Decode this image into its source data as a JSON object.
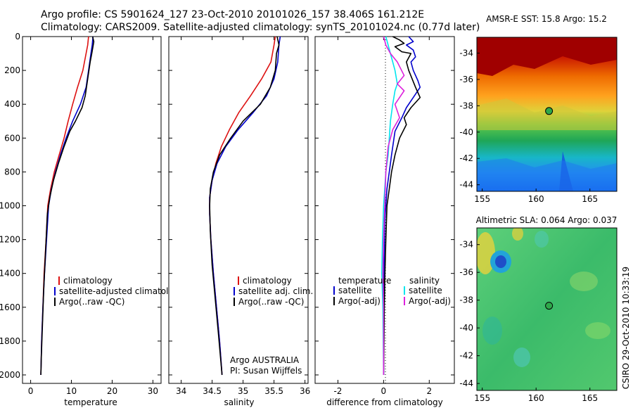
{
  "header": {
    "line1": "Argo profile: CS 5901624_127 23-Oct-2010 20101026_157 38.406S 161.212E",
    "line2": "Climatology: CARS2009. Satellite-adjusted climatology: synTS_20101024.nc (0.77d later)"
  },
  "colors": {
    "climatology": "#dd1111",
    "satellite": "#0000cc",
    "argo": "#000000",
    "adj_salinity": "#00e5ee",
    "argo_salinity": "#dd22dd"
  },
  "chart_data": [
    {
      "type": "line",
      "panel": "temperature",
      "xlabel": "temperature",
      "ylabel": "",
      "xlim": [
        -2,
        32
      ],
      "ylim": [
        2050,
        0
      ],
      "y_reversed": true,
      "xticks": [
        "0",
        "10",
        "20",
        "30"
      ],
      "yticks": [
        "0",
        "200",
        "400",
        "600",
        "800",
        "1000",
        "1200",
        "1400",
        "1600",
        "1800",
        "2000"
      ],
      "legend": [
        "climatology",
        "satellite-adjusted climatolog",
        "Argo(..raw -QC)"
      ],
      "series": [
        {
          "name": "climatology",
          "color": "#dd1111",
          "points": [
            [
              14.2,
              0
            ],
            [
              14.0,
              50
            ],
            [
              13.6,
              100
            ],
            [
              12.8,
              200
            ],
            [
              11.5,
              300
            ],
            [
              10.3,
              400
            ],
            [
              9.2,
              500
            ],
            [
              8.2,
              600
            ],
            [
              7.0,
              700
            ],
            [
              5.8,
              800
            ],
            [
              4.9,
              900
            ],
            [
              4.2,
              1000
            ],
            [
              3.8,
              1200
            ],
            [
              3.3,
              1400
            ],
            [
              3.0,
              1600
            ],
            [
              2.7,
              1800
            ],
            [
              2.5,
              2000
            ]
          ]
        },
        {
          "name": "satellite-adjusted climatolog",
          "color": "#0000cc",
          "points": [
            [
              15.3,
              0
            ],
            [
              15.1,
              50
            ],
            [
              14.8,
              100
            ],
            [
              14.2,
              200
            ],
            [
              13.6,
              300
            ],
            [
              12.2,
              400
            ],
            [
              10.3,
              500
            ],
            [
              8.7,
              600
            ],
            [
              7.3,
              700
            ],
            [
              6.1,
              800
            ],
            [
              5.1,
              900
            ],
            [
              4.4,
              1000
            ],
            [
              3.9,
              1200
            ],
            [
              3.4,
              1400
            ],
            [
              3.0,
              1600
            ],
            [
              2.7,
              1800
            ],
            [
              2.5,
              2000
            ]
          ]
        },
        {
          "name": "Argo(..raw -QC)",
          "color": "#000000",
          "points": [
            [
              15.2,
              0
            ],
            [
              15.5,
              30
            ],
            [
              15.0,
              100
            ],
            [
              14.6,
              150
            ],
            [
              14.0,
              250
            ],
            [
              13.4,
              350
            ],
            [
              12.6,
              420
            ],
            [
              11.0,
              500
            ],
            [
              9.6,
              560
            ],
            [
              8.2,
              650
            ],
            [
              6.8,
              750
            ],
            [
              5.6,
              850
            ],
            [
              4.7,
              950
            ],
            [
              4.1,
              1050
            ],
            [
              3.6,
              1300
            ],
            [
              3.2,
              1500
            ],
            [
              2.9,
              1700
            ],
            [
              2.6,
              1900
            ],
            [
              2.5,
              2000
            ]
          ]
        }
      ]
    },
    {
      "type": "line",
      "panel": "salinity",
      "xlabel": "salinity",
      "ylabel": "",
      "xlim": [
        33.8,
        36.05
      ],
      "ylim": [
        2050,
        0
      ],
      "y_reversed": true,
      "xticks": [
        "34",
        "34.5",
        "35",
        "35.5",
        "36"
      ],
      "legend": [
        "climatology",
        "satellite adj. clim.",
        "Argo(..raw -QC)"
      ],
      "annotation": [
        "Argo AUSTRALIA",
        "PI: Susan Wijffels"
      ],
      "series": [
        {
          "name": "climatology",
          "color": "#dd1111",
          "points": [
            [
              35.52,
              0
            ],
            [
              35.5,
              50
            ],
            [
              35.45,
              150
            ],
            [
              35.3,
              250
            ],
            [
              35.12,
              350
            ],
            [
              34.93,
              450
            ],
            [
              34.78,
              550
            ],
            [
              34.65,
              650
            ],
            [
              34.56,
              750
            ],
            [
              34.5,
              850
            ],
            [
              34.46,
              950
            ],
            [
              34.46,
              1050
            ],
            [
              34.48,
              1200
            ],
            [
              34.52,
              1400
            ],
            [
              34.57,
              1600
            ],
            [
              34.62,
              1800
            ],
            [
              34.66,
              2000
            ]
          ]
        },
        {
          "name": "satellite adj. clim.",
          "color": "#0000cc",
          "points": [
            [
              35.6,
              0
            ],
            [
              35.58,
              50
            ],
            [
              35.56,
              150
            ],
            [
              35.5,
              250
            ],
            [
              35.38,
              350
            ],
            [
              35.16,
              450
            ],
            [
              34.92,
              550
            ],
            [
              34.72,
              650
            ],
            [
              34.58,
              750
            ],
            [
              34.5,
              850
            ],
            [
              34.46,
              950
            ],
            [
              34.46,
              1050
            ],
            [
              34.48,
              1200
            ],
            [
              34.52,
              1400
            ],
            [
              34.57,
              1600
            ],
            [
              34.62,
              1800
            ],
            [
              34.66,
              2000
            ]
          ]
        },
        {
          "name": "Argo(..raw -QC)",
          "color": "#000000",
          "points": [
            [
              35.55,
              0
            ],
            [
              35.58,
              50
            ],
            [
              35.54,
              100
            ],
            [
              35.52,
              200
            ],
            [
              35.44,
              300
            ],
            [
              35.28,
              400
            ],
            [
              35.0,
              500
            ],
            [
              34.8,
              600
            ],
            [
              34.62,
              700
            ],
            [
              34.52,
              800
            ],
            [
              34.47,
              900
            ],
            [
              34.46,
              1000
            ],
            [
              34.47,
              1150
            ],
            [
              34.5,
              1350
            ],
            [
              34.55,
              1550
            ],
            [
              34.6,
              1750
            ],
            [
              34.66,
              2000
            ]
          ]
        }
      ]
    },
    {
      "type": "line",
      "panel": "difference",
      "xlabel": "difference from climatology",
      "ylabel": "",
      "xlim": [
        -3,
        3.1
      ],
      "ylim": [
        2050,
        0
      ],
      "y_reversed": true,
      "xticks": [
        "-2",
        "0",
        "2"
      ],
      "legend_left_header": "temperature",
      "legend_right_header": "salinity",
      "legend": [
        "satellite",
        "Argo(-adj)",
        "satellite",
        "Argo(-adj)"
      ],
      "series": [
        {
          "name": "temperature satellite",
          "color": "#0000cc",
          "points": [
            [
              1.1,
              0
            ],
            [
              1.3,
              30
            ],
            [
              1.0,
              50
            ],
            [
              1.3,
              80
            ],
            [
              1.4,
              120
            ],
            [
              1.2,
              150
            ],
            [
              1.3,
              200
            ],
            [
              1.5,
              260
            ],
            [
              1.6,
              300
            ],
            [
              1.3,
              360
            ],
            [
              1.0,
              420
            ],
            [
              0.8,
              480
            ],
            [
              0.5,
              560
            ],
            [
              0.35,
              700
            ],
            [
              0.25,
              800
            ],
            [
              0.15,
              900
            ],
            [
              0.05,
              1100
            ],
            [
              0.02,
              1400
            ],
            [
              0.0,
              1800
            ],
            [
              0.0,
              2000
            ]
          ]
        },
        {
          "name": "temperature Argo(-adj)",
          "color": "#000000",
          "points": [
            [
              0.4,
              0
            ],
            [
              0.7,
              20
            ],
            [
              0.9,
              40
            ],
            [
              0.5,
              60
            ],
            [
              0.8,
              90
            ],
            [
              1.2,
              100
            ],
            [
              1.0,
              150
            ],
            [
              1.1,
              200
            ],
            [
              1.4,
              300
            ],
            [
              1.6,
              360
            ],
            [
              1.2,
              420
            ],
            [
              0.9,
              480
            ],
            [
              1.0,
              520
            ],
            [
              0.7,
              600
            ],
            [
              0.5,
              700
            ],
            [
              0.35,
              800
            ],
            [
              0.25,
              900
            ],
            [
              0.15,
              1000
            ],
            [
              0.1,
              1200
            ],
            [
              0.06,
              1400
            ],
            [
              0.03,
              1600
            ],
            [
              0.0,
              2000
            ]
          ]
        },
        {
          "name": "salinity satellite",
          "color": "#00e5ee",
          "points": [
            [
              0.1,
              0
            ],
            [
              0.3,
              100
            ],
            [
              0.5,
              200
            ],
            [
              0.6,
              280
            ],
            [
              0.5,
              320
            ],
            [
              0.4,
              400
            ],
            [
              0.3,
              500
            ],
            [
              0.25,
              600
            ],
            [
              0.2,
              700
            ],
            [
              0.1,
              800
            ],
            [
              0.05,
              900
            ],
            [
              0.0,
              1000
            ],
            [
              -0.05,
              1200
            ],
            [
              -0.08,
              1400
            ],
            [
              -0.03,
              1600
            ],
            [
              0.0,
              2000
            ]
          ]
        },
        {
          "name": "salinity Argo(-adj)",
          "color": "#dd22dd",
          "points": [
            [
              0.0,
              0
            ],
            [
              0.1,
              50
            ],
            [
              0.3,
              100
            ],
            [
              0.6,
              150
            ],
            [
              0.9,
              230
            ],
            [
              0.6,
              280
            ],
            [
              0.9,
              320
            ],
            [
              0.5,
              400
            ],
            [
              0.7,
              480
            ],
            [
              0.4,
              550
            ],
            [
              0.2,
              650
            ],
            [
              0.1,
              800
            ],
            [
              0.05,
              1000
            ],
            [
              0.0,
              1200
            ],
            [
              -0.03,
              1400
            ],
            [
              0.0,
              1600
            ],
            [
              0.0,
              2000
            ]
          ]
        }
      ]
    },
    {
      "type": "heatmap",
      "panel": "sst_map",
      "title": "AMSR-E SST: 15.8 Argo: 15.2",
      "xlim": [
        154.5,
        167.5
      ],
      "ylim": [
        -44.5,
        -32.8
      ],
      "xticks": [
        "155",
        "160",
        "165"
      ],
      "yticks": [
        "-34",
        "-36",
        "-38",
        "-40",
        "-42",
        "-44"
      ],
      "marker": {
        "lon": 161.2,
        "lat": -38.4
      }
    },
    {
      "type": "heatmap",
      "panel": "sla_map",
      "title": "Altimetric SLA: 0.064 Argo: 0.037",
      "xlim": [
        154.5,
        167.5
      ],
      "ylim": [
        -44.5,
        -32.8
      ],
      "xticks": [
        "155",
        "160",
        "165"
      ],
      "yticks": [
        "-34",
        "-36",
        "-38",
        "-40",
        "-42",
        "-44"
      ],
      "marker": {
        "lon": 161.2,
        "lat": -38.4
      },
      "side_label": "CSIRO 29-Oct-2010 10:33:19"
    }
  ]
}
